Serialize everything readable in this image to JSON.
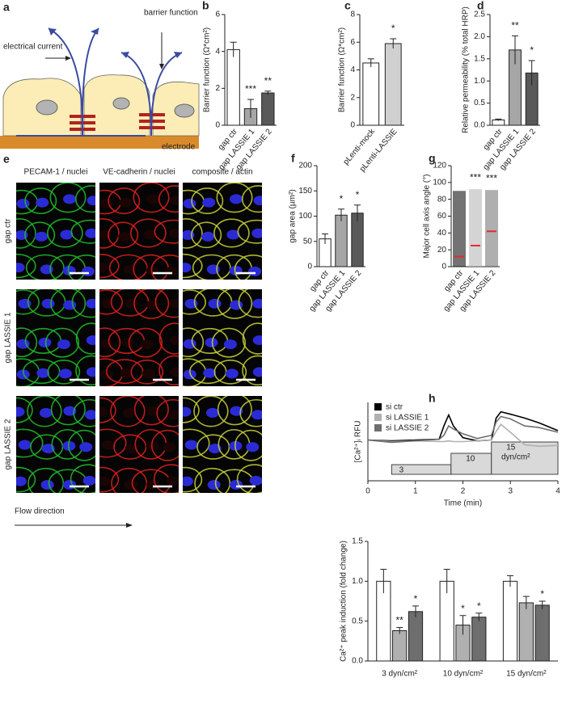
{
  "panel_a": {
    "label": "a",
    "current": "electrical current",
    "barrier": "barrier function",
    "electrode": "electrode"
  },
  "panel_e": {
    "label": "e",
    "columns": [
      "PECAM-1 / nuclei",
      "VE-cadherin / nuclei",
      "composite / actin"
    ],
    "rows": [
      "gap ctr",
      "gap LASSIE 1",
      "gap LASSIE 2"
    ],
    "flow": "Flow direction"
  },
  "chart_data": [
    {
      "type": "bar",
      "label": "b",
      "y_label": "Barrier function (Ω*cm²)",
      "categories": [
        "gap ctr",
        "gap LASSIE 1",
        "gap LASSIE 2"
      ],
      "values": [
        4.1,
        0.9,
        1.75
      ],
      "errors": [
        0.4,
        0.5,
        0.1
      ],
      "colors": [
        "#ffffff",
        "#a6a6a6",
        "#595959"
      ],
      "annotations": [
        null,
        "***",
        "**"
      ],
      "ylim": [
        0,
        6
      ],
      "yticks": [
        0,
        2,
        4,
        6
      ]
    },
    {
      "type": "bar",
      "label": "c",
      "y_label": "Barrier function (Ω*cm²)",
      "categories": [
        "pLenti-mock",
        "pLenti-LASSIE"
      ],
      "values": [
        4.5,
        5.9
      ],
      "errors": [
        0.3,
        0.35
      ],
      "colors": [
        "#ffffff",
        "#d0d0d0"
      ],
      "annotations": [
        null,
        "*"
      ],
      "ylim": [
        0,
        8
      ],
      "yticks": [
        0,
        2,
        4,
        6,
        8
      ]
    },
    {
      "type": "bar",
      "label": "d",
      "y_label": "Relative permeability (% total HRP)",
      "categories": [
        "gap ctr",
        "gap LASSIE 1",
        "gap LASSIE 2"
      ],
      "values": [
        0.12,
        1.7,
        1.18
      ],
      "errors": [
        0.02,
        0.32,
        0.28
      ],
      "colors": [
        "#ffffff",
        "#a6a6a6",
        "#595959"
      ],
      "annotations": [
        null,
        "**",
        "*"
      ],
      "ylim": [
        0,
        2.5
      ],
      "yticks": [
        {
          "value": 0,
          "label": "0.0"
        },
        0.5,
        {
          "value": 1,
          "label": "1.0"
        },
        1.5,
        {
          "value": 2,
          "label": "2.0"
        },
        2.5
      ]
    },
    {
      "type": "bar",
      "label": "f",
      "y_label": "gap area (µm²)",
      "categories": [
        "gap ctr",
        "gap LASSIE 1",
        "gap LASSIE 2"
      ],
      "values": [
        55,
        102,
        106
      ],
      "errors": [
        10,
        12,
        16
      ],
      "colors": [
        "#ffffff",
        "#a6a6a6",
        "#595959"
      ],
      "annotations": [
        null,
        "*",
        "*"
      ],
      "ylim": [
        0,
        200
      ],
      "yticks": [
        0,
        50,
        100,
        150,
        200
      ]
    },
    {
      "type": "strip",
      "label": "g",
      "y_label": "Major cell axis angle (°)",
      "categories": [
        "gap ctr",
        "gap LASSIE 1",
        "gap LASSIE 2"
      ],
      "values": [
        12,
        25,
        42
      ],
      "max": [
        90,
        92,
        91
      ],
      "colors": [
        "#000000",
        "#b0b0b0",
        "#6e6e6e"
      ],
      "mean_color": "#e8292b",
      "annotations": [
        null,
        "***",
        "***"
      ],
      "ylim": [
        0,
        120
      ],
      "yticks": [
        0,
        20,
        40,
        60,
        80,
        100,
        120
      ]
    },
    {
      "type": "line",
      "label": "h",
      "y_label": "[Ca²⁺]ᵢ RFU",
      "x_label": "Time (min)",
      "xlim": [
        0,
        4
      ],
      "xticks": [
        0,
        1,
        2,
        3,
        4
      ],
      "ylim": [
        0,
        100
      ],
      "x": [
        0,
        0.5,
        1.0,
        1.5,
        1.6,
        1.7,
        1.8,
        2.0,
        2.3,
        2.6,
        2.7,
        2.8,
        3.0,
        3.3,
        3.6,
        4.0
      ],
      "series": [
        {
          "name": "si ctr",
          "color": "#000000",
          "values": [
            52,
            51,
            52,
            53,
            70,
            84,
            70,
            55,
            51,
            52,
            80,
            88,
            85,
            80,
            74,
            64
          ]
        },
        {
          "name": "si LASSIE 1",
          "color": "#b0b0b0",
          "values": [
            52,
            50,
            51,
            50,
            50,
            51,
            50,
            50,
            51,
            52,
            63,
            72,
            62,
            46,
            44,
            45
          ]
        },
        {
          "name": "si LASSIE 2",
          "color": "#6e6e6e",
          "values": [
            52,
            49,
            51,
            53,
            58,
            70,
            66,
            60,
            54,
            58,
            75,
            82,
            79,
            70,
            68,
            62
          ]
        }
      ],
      "steps": [
        {
          "label": "3",
          "start": 0.5,
          "end": 1.75
        },
        {
          "label": "10",
          "start": 1.75,
          "end": 2.6
        },
        {
          "label": "15",
          "start": 2.6,
          "end": 4,
          "unit": "dyn/cm²"
        }
      ],
      "legend": "top-left"
    },
    {
      "type": "grouped_bar",
      "y_label": "Ca²⁺ peak induction (fold change)",
      "categories": [
        "3 dyn/cm²",
        "10 dyn/cm²",
        "15 dyn/cm²"
      ],
      "series": [
        {
          "name": "si ctr",
          "color": "#ffffff",
          "values": [
            1.0,
            1.0,
            1.0
          ],
          "errors": [
            0.15,
            0.15,
            0.07
          ],
          "annotations": [
            null,
            null,
            null
          ]
        },
        {
          "name": "si LASSIE 1",
          "color": "#b0b0b0",
          "values": [
            0.38,
            0.45,
            0.73
          ],
          "errors": [
            0.04,
            0.12,
            0.08
          ],
          "annotations": [
            "**",
            "*",
            null
          ]
        },
        {
          "name": "si LASSIE 2",
          "color": "#6e6e6e",
          "values": [
            0.62,
            0.55,
            0.7
          ],
          "errors": [
            0.07,
            0.05,
            0.05
          ],
          "annotations": [
            "*",
            "*",
            "*"
          ]
        }
      ],
      "ylim": [
        0,
        1.5
      ],
      "yticks": [
        {
          "value": 0,
          "label": "0.0"
        },
        0.5,
        {
          "value": 1,
          "label": "1.0"
        },
        1.5
      ]
    }
  ]
}
